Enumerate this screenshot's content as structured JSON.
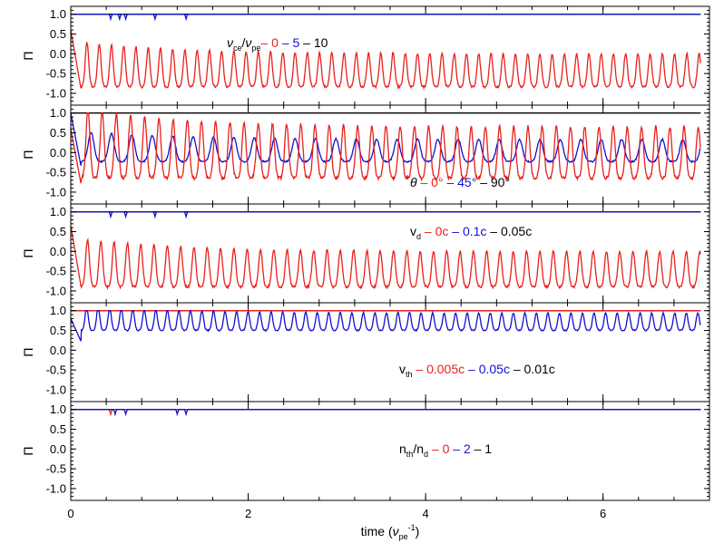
{
  "colors": {
    "red": "#e8201c",
    "blue": "#1010d0",
    "black": "#000000"
  },
  "chart_data": {
    "type": "line",
    "xlabel_parts": [
      "time (",
      "ν",
      "pe",
      "-1",
      ")"
    ],
    "xlim": [
      0,
      7.2
    ],
    "x_ticks": [
      0,
      2,
      4,
      6
    ],
    "x_tick_labels": [
      "0",
      "2",
      "4",
      "6"
    ],
    "y_ticks": [
      -1.0,
      -0.5,
      0.0,
      0.5,
      1.0
    ],
    "y_tick_labels": [
      "-1.0",
      "-0.5",
      "0.0",
      "0.5",
      "1.0"
    ],
    "ylim": [
      -1.3,
      1.2
    ],
    "panels": [
      {
        "ylabel": "Π",
        "legend": {
          "parts": [
            {
              "t": "ν",
              "c": "black",
              "i": true
            },
            {
              "t": "ce",
              "c": "black",
              "sub": true
            },
            {
              "t": "/",
              "c": "black"
            },
            {
              "t": "ν",
              "c": "black",
              "i": true
            },
            {
              "t": "pe",
              "c": "black",
              "sub": true
            },
            {
              "t": "– 0",
              "c": "red"
            },
            {
              "t": " – 5",
              "c": "blue"
            },
            {
              "t": " – 10",
              "c": "black"
            }
          ]
        },
        "series": [
          {
            "color": "black",
            "shape": "flat",
            "level": 1.0,
            "x": [
              0,
              7.1
            ]
          },
          {
            "color": "blue",
            "shape": "flat",
            "level": 1.0,
            "x": [
              0,
              7.1
            ],
            "dips_x": [
              0.45,
              0.55,
              0.62,
              0.95,
              1.3
            ]
          },
          {
            "color": "red",
            "shape": "oscillation",
            "x": [
              0,
              7.1
            ],
            "period": 0.138,
            "mean": -0.42,
            "amplitude": 0.42,
            "start": 0.6,
            "min_start": -0.95
          }
        ]
      },
      {
        "ylabel": "Π",
        "legend": {
          "parts": [
            {
              "t": "θ",
              "c": "black",
              "i": true
            },
            {
              "t": " – 0°",
              "c": "red"
            },
            {
              "t": " – 45°",
              "c": "blue"
            },
            {
              "t": " – 90°",
              "c": "black"
            }
          ]
        },
        "series": [
          {
            "color": "black",
            "shape": "flat",
            "level": 1.0,
            "x": [
              0,
              7.1
            ]
          },
          {
            "color": "blue",
            "shape": "oscillation",
            "x": [
              0,
              7.1
            ],
            "period": 0.23,
            "mean": 0.05,
            "amplitude": 0.28,
            "start": 1.0,
            "min_start": -0.4
          },
          {
            "color": "red",
            "shape": "oscillation",
            "x": [
              0,
              7.1
            ],
            "period": 0.16,
            "mean": 0.0,
            "amplitude": 0.65,
            "start": 0.6,
            "min_start": -0.85
          }
        ]
      },
      {
        "ylabel": "Π",
        "legend": {
          "parts": [
            {
              "t": "v",
              "c": "black"
            },
            {
              "t": "d",
              "c": "black",
              "sub": true
            },
            {
              "t": " – 0c",
              "c": "red"
            },
            {
              "t": " – 0.1c",
              "c": "blue"
            },
            {
              "t": " – 0.05c",
              "c": "black"
            }
          ]
        },
        "series": [
          {
            "color": "black",
            "shape": "flat",
            "level": 1.0,
            "x": [
              0,
              7.1
            ]
          },
          {
            "color": "blue",
            "shape": "flat",
            "level": 1.0,
            "x": [
              0,
              7.1
            ],
            "dips_x": [
              0.45,
              0.62,
              0.95,
              1.3
            ]
          },
          {
            "color": "red",
            "shape": "oscillation",
            "x": [
              0,
              7.1
            ],
            "period": 0.15,
            "mean": -0.45,
            "amplitude": 0.45,
            "start": 0.65,
            "min_start": -0.95
          }
        ]
      },
      {
        "ylabel": "Π",
        "legend": {
          "parts": [
            {
              "t": "v",
              "c": "black"
            },
            {
              "t": "th",
              "c": "black",
              "sub": true
            },
            {
              "t": " – 0.005c",
              "c": "red"
            },
            {
              "t": " – 0.05c",
              "c": "blue"
            },
            {
              "t": "  – 0.01c",
              "c": "black"
            }
          ]
        },
        "series": [
          {
            "color": "black",
            "shape": "flat",
            "level": 1.0,
            "x": [
              0,
              7.1
            ]
          },
          {
            "color": "red",
            "shape": "flat",
            "level": 1.0,
            "x": [
              0,
              7.1
            ]
          },
          {
            "color": "blue",
            "shape": "oscillation",
            "x": [
              0,
              7.1
            ],
            "period": 0.13,
            "mean": 0.72,
            "amplitude": 0.22,
            "start": 0.8,
            "min_start": 0.2
          }
        ]
      },
      {
        "ylabel": "Π",
        "legend": {
          "parts": [
            {
              "t": "n",
              "c": "black"
            },
            {
              "t": "th",
              "c": "black",
              "sub": true
            },
            {
              "t": "/n",
              "c": "black"
            },
            {
              "t": "d",
              "c": "black",
              "sub": true
            },
            {
              "t": " – 0",
              "c": "red"
            },
            {
              "t": " – 2",
              "c": "blue"
            },
            {
              "t": " – 1",
              "c": "black"
            }
          ]
        },
        "series": [
          {
            "color": "black",
            "shape": "flat",
            "level": 1.0,
            "x": [
              0,
              7.1
            ]
          },
          {
            "color": "red",
            "shape": "flat",
            "level": 1.0,
            "x": [
              0,
              7.1
            ],
            "dips_x": [
              0.45
            ]
          },
          {
            "color": "blue",
            "shape": "flat",
            "level": 1.0,
            "x": [
              0,
              7.1
            ],
            "dips_x": [
              0.5,
              0.62,
              1.2,
              1.3
            ]
          }
        ]
      }
    ]
  }
}
